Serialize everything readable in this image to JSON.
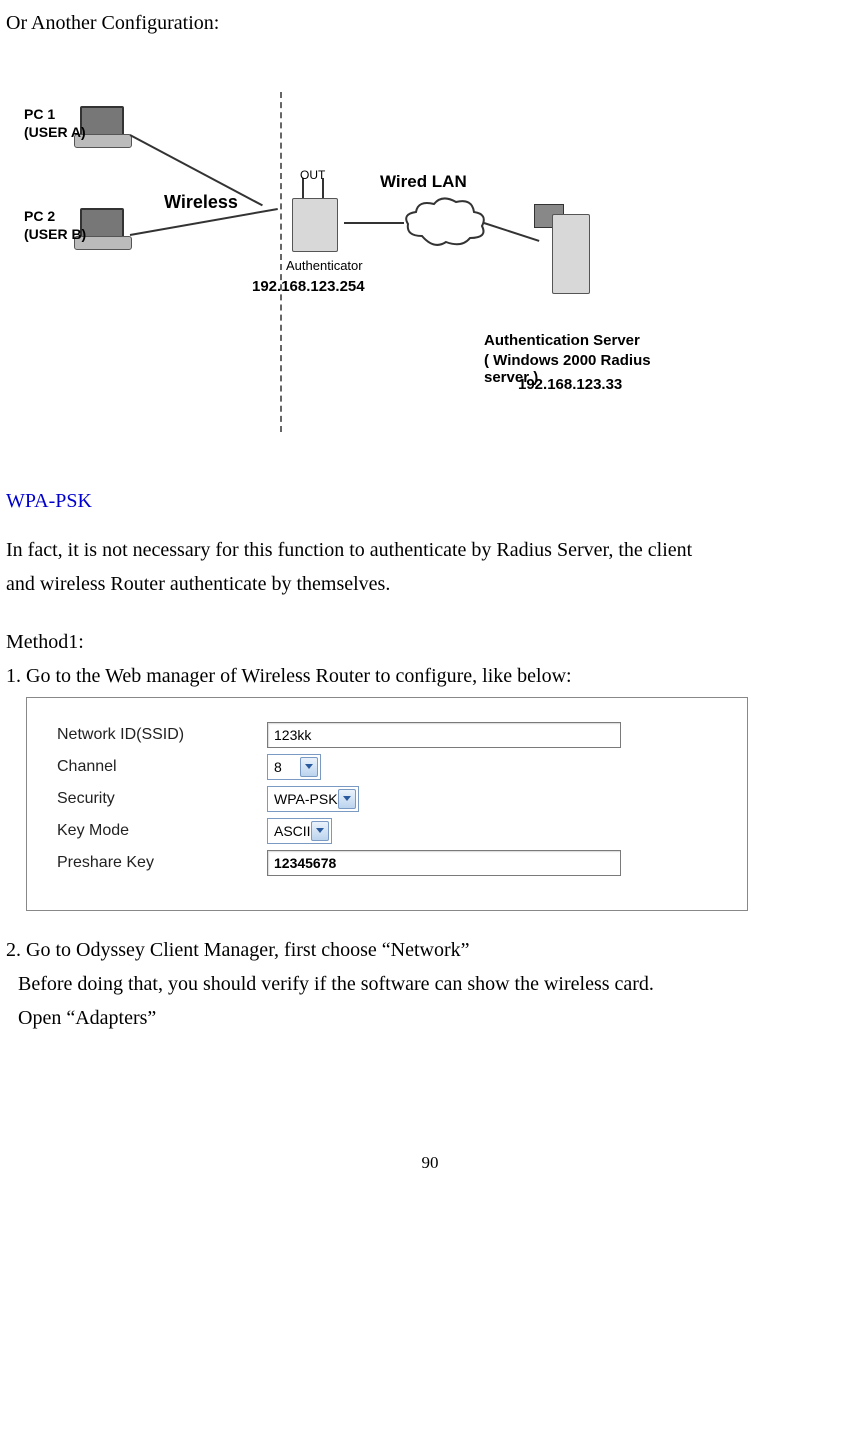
{
  "intro_line": "Or Another Configuration:",
  "diagram": {
    "pc1": "PC 1",
    "pc1_user": "(USER A)",
    "pc2": "PC 2",
    "pc2_user": "(USER B)",
    "wireless": "Wireless",
    "out": "OUT",
    "authenticator": "Authenticator",
    "auth_ip": "192.168.123.254",
    "wired_lan": "Wired  LAN",
    "auth_server_l1": "Authentication Server",
    "auth_server_l2": "( Windows 2000 Radius server )",
    "server_ip": "192.168.123.33"
  },
  "wpa_heading": "WPA-PSK",
  "wpa_desc_l1": "In fact, it is not necessary for this function to authenticate by Radius Server, the client",
  "wpa_desc_l2": "and wireless Router authenticate by themselves.",
  "method_label": "Method1:",
  "step1": "1. Go to the Web manager of Wireless Router to configure, like below:",
  "settings": {
    "rows": [
      {
        "label": "Network ID(SSID)",
        "type": "text",
        "value": "123kk",
        "wide": true
      },
      {
        "label": "Channel",
        "type": "select",
        "value": "8"
      },
      {
        "label": "Security",
        "type": "select",
        "value": "WPA-PSK"
      },
      {
        "label": "Key Mode",
        "type": "select",
        "value": "ASCII"
      },
      {
        "label": "Preshare Key",
        "type": "text",
        "value": "12345678",
        "wide": true,
        "bold": true
      }
    ]
  },
  "step2_l1": "2. Go to Odyssey Client Manager, first choose “Network”",
  "step2_l2": "Before doing that, you should verify if the software can show the wireless card.",
  "step2_l3": "Open “Adapters”",
  "page_number": "90"
}
